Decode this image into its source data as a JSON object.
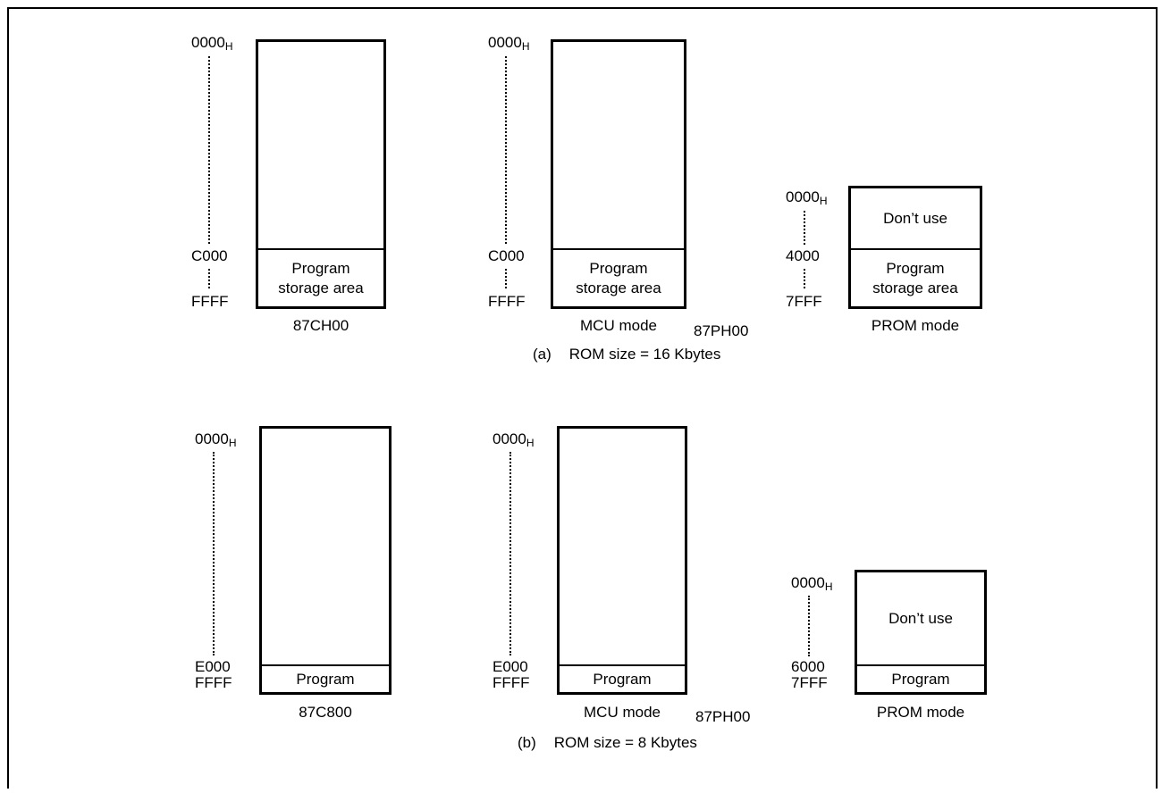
{
  "diagram_a": {
    "caption_letter": "(a)",
    "caption_text": "ROM size = 16 Kbytes",
    "map1": {
      "start": "0000",
      "start_sub": "H",
      "mid": "C000",
      "end": "FFFF",
      "area": [
        "Program",
        "storage area"
      ],
      "name": "87CH00"
    },
    "map2": {
      "start": "0000",
      "start_sub": "H",
      "mid": "C000",
      "end": "FFFF",
      "area": [
        "Program",
        "storage area"
      ],
      "name": "MCU mode"
    },
    "part": "87PH00",
    "map3": {
      "start": "0000",
      "start_sub": "H",
      "mid": "4000",
      "end": "7FFF",
      "top_cell": "Don’t use",
      "area": [
        "Program",
        "storage area"
      ],
      "name": "PROM mode"
    }
  },
  "diagram_b": {
    "caption_letter": "(b)",
    "caption_text": "ROM size = 8 Kbytes",
    "map1": {
      "start": "0000",
      "start_sub": "H",
      "mid": "E000",
      "end": "FFFF",
      "area": "Program",
      "name": "87C800"
    },
    "map2": {
      "start": "0000",
      "start_sub": "H",
      "mid": "E000",
      "end": "FFFF",
      "area": "Program",
      "name": "MCU mode"
    },
    "part": "87PH00",
    "map3": {
      "start": "0000",
      "start_sub": "H",
      "mid": "6000",
      "end": "7FFF",
      "top_cell": "Don’t use",
      "area": "Program",
      "name": "PROM mode"
    }
  }
}
